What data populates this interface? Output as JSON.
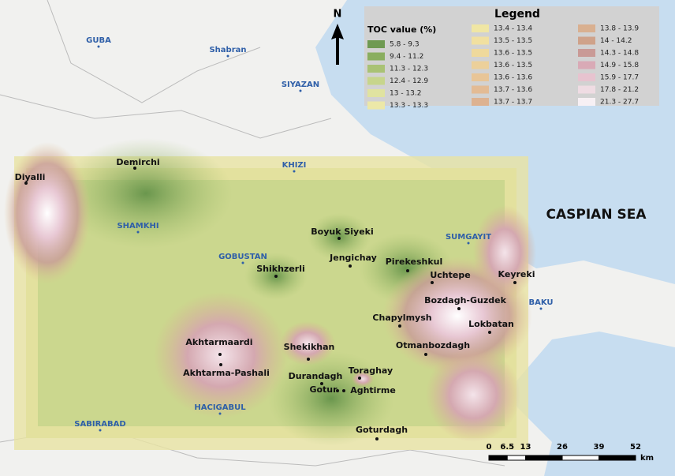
{
  "legend": {
    "title": "Legend",
    "subtitle": "TOC value (%)",
    "classes": [
      {
        "label": "5.8 - 9.3",
        "color": "#6f9a52"
      },
      {
        "label": "9.4 - 11.2",
        "color": "#8aae5f"
      },
      {
        "label": "11.3 - 12.3",
        "color": "#a9c274"
      },
      {
        "label": "12.4 - 12.9",
        "color": "#c7d58c"
      },
      {
        "label": "13 - 13.2",
        "color": "#e0e3a0"
      },
      {
        "label": "13.3 - 13.3",
        "color": "#ece8a8"
      },
      {
        "label": "13.4 - 13.4",
        "color": "#f0e6a4"
      },
      {
        "label": "13.5 - 13.5",
        "color": "#f1e0a0"
      },
      {
        "label": "13.6 - 13.5",
        "color": "#efd99c"
      },
      {
        "label": "13.6 - 13.5",
        "color": "#ecd09a"
      },
      {
        "label": "13.6 - 13.6",
        "color": "#e8c597"
      },
      {
        "label": "13.7 - 13.6",
        "color": "#e3bb94"
      },
      {
        "label": "13.7 - 13.7",
        "color": "#ddb291"
      },
      {
        "label": "13.8 - 13.9",
        "color": "#d9b090"
      },
      {
        "label": "14 - 14.2",
        "color": "#cfa28a"
      },
      {
        "label": "14.3 - 14.8",
        "color": "#c99a96"
      },
      {
        "label": "14.9 - 15.8",
        "color": "#d9aab6"
      },
      {
        "label": "15.9 - 17.7",
        "color": "#e7c3cf"
      },
      {
        "label": "17.8 - 21.2",
        "color": "#efdce3"
      },
      {
        "label": "21.3 - 27.7",
        "color": "#f7f0f4"
      }
    ]
  },
  "north": "N",
  "sea": "CASPIAN SEA",
  "regions": [
    "GUBA",
    "Shabran",
    "SIYAZAN",
    "KHIZI",
    "SHAMKHI",
    "GOBUSTAN",
    "SUMGAYIT",
    "BAKU",
    "HACIGABUL",
    "SABIRABAD"
  ],
  "sites": [
    "Demirchi",
    "Diyalli",
    "Boyuk Siyeki",
    "Jengichay",
    "Pirekeshkul",
    "Shikhzerli",
    "Uchtepe",
    "Keyreki",
    "Bozdagh-Guzdek",
    "Chapylmysh",
    "Lokbatan",
    "Akhtarmaardi",
    "Shekikhan",
    "Otmanbozdagh",
    "Akhtarma-Pashali",
    "Toraghay",
    "Durandagh",
    "Gotur",
    "Aghtirme",
    "Goturdagh"
  ],
  "scale": {
    "ticks": [
      0,
      6.5,
      13,
      26,
      39,
      52
    ],
    "unit": "km"
  }
}
